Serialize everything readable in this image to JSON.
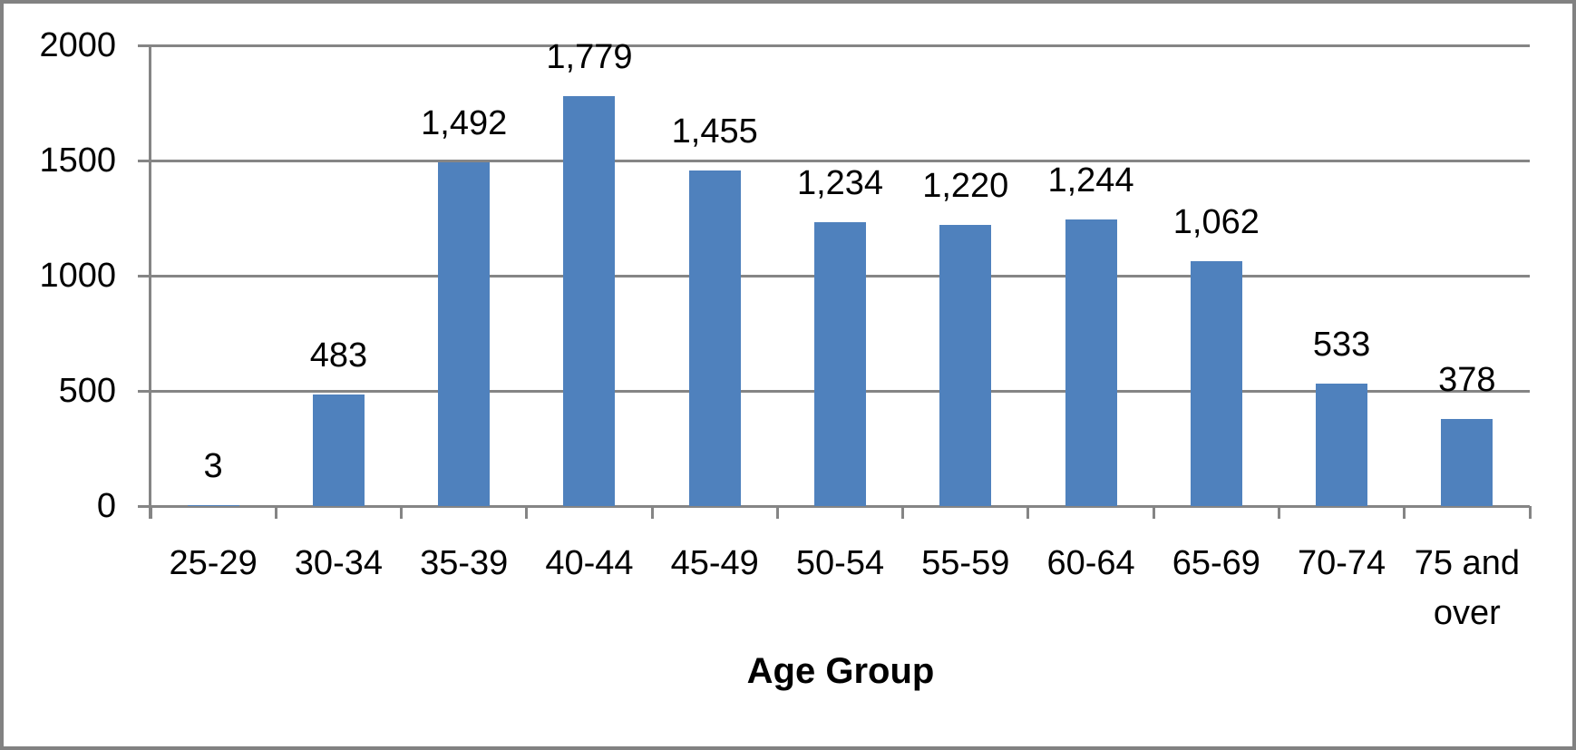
{
  "chart_data": {
    "type": "bar",
    "title": "",
    "xlabel": "Age Group",
    "ylabel": "",
    "categories": [
      "25-29",
      "30-34",
      "35-39",
      "40-44",
      "45-49",
      "50-54",
      "55-59",
      "60-64",
      "65-69",
      "70-74",
      "75 and over"
    ],
    "values": [
      3,
      483,
      1492,
      1779,
      1455,
      1234,
      1220,
      1244,
      1062,
      533,
      378
    ],
    "data_labels": [
      "3",
      "483",
      "1,492",
      "1,779",
      "1,455",
      "1,234",
      "1,220",
      "1,244",
      "1,062",
      "533",
      "378"
    ],
    "y_ticks": [
      0,
      500,
      1000,
      1500,
      2000
    ],
    "y_tick_labels": [
      "0",
      "500",
      "1000",
      "1500",
      "2000"
    ],
    "ylim": [
      0,
      2000
    ],
    "grid": true,
    "legend": false,
    "series_name": "",
    "colors": {
      "bar_fill": "#4F81BD",
      "gridline": "#858585",
      "axis": "#858585",
      "frame_border": "#828282",
      "text": "#000000",
      "background": "#FFFFFF"
    }
  }
}
